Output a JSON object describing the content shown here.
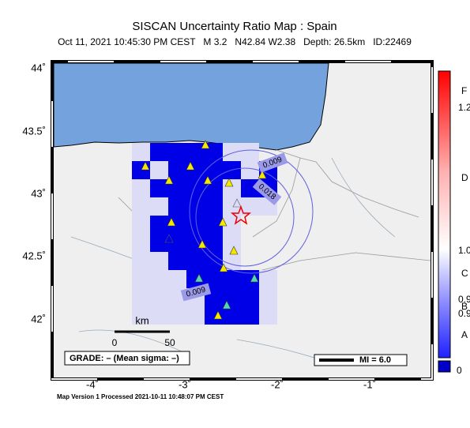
{
  "header": {
    "title": "SISCAN Uncertainty Ratio Map : Spain",
    "subtitle": "Oct 11, 2021 10:45:30 PM CEST   M 3.2   N42.84 W2.38   Depth: 26.5km   ID:22469"
  },
  "lat_labels": [
    "44˚",
    "43.5˚",
    "43˚",
    "42.5˚",
    "42˚"
  ],
  "lon_labels": [
    "-4˚",
    "-3˚",
    "-2˚",
    "-1˚"
  ],
  "colorbar_labels": [
    "F",
    "1.2",
    "D",
    "1.0",
    "C",
    "0.9",
    "B",
    "0.9",
    "A",
    "0"
  ],
  "contour_labels": [
    "0.009",
    "0.018",
    "0.009"
  ],
  "scale": {
    "unit": "km",
    "start": "0",
    "end": "50"
  },
  "grade": "GRADE: – (Mean sigma: –)",
  "legend": "MI = 6.0",
  "footer": "Map Version 1 Processed 2021-10-11 10:48:07 PM CEST"
}
